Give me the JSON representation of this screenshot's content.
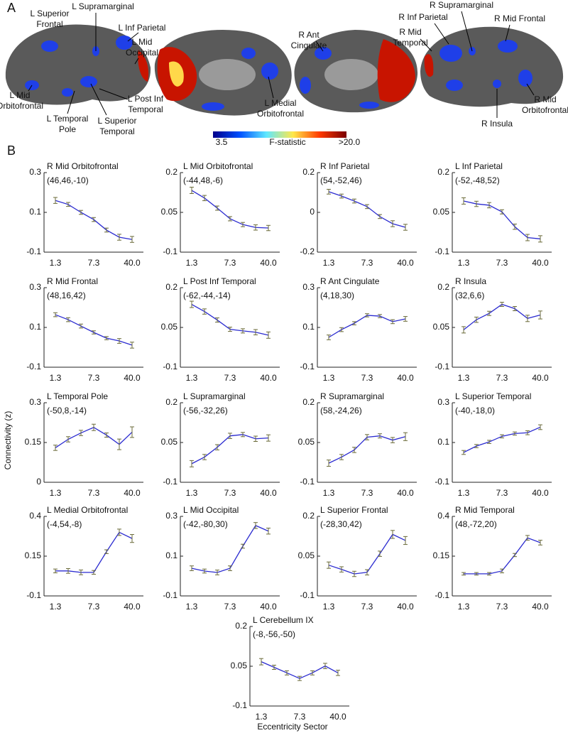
{
  "panel_labels": [
    "A",
    "B"
  ],
  "y_label": "Connectivity (z)",
  "x_label": "Eccentricity Sector",
  "colorbar": {
    "min_label": "3.5",
    "title": "F-statistic",
    "max_label": ">20.0"
  },
  "brain_labels": [
    [
      "L Superior",
      "Frontal"
    ],
    [
      "L Supramarginal"
    ],
    [
      "L Inf Parietal"
    ],
    [
      "L Mid",
      "Occipital"
    ],
    [
      "L Mid",
      "Orbitofrontal"
    ],
    [
      "L Temporal",
      "Pole"
    ],
    [
      "L Superior",
      "Temporal"
    ],
    [
      "L Post Inf",
      "Temporal"
    ],
    [
      "R Ant",
      "Cingulate"
    ],
    [
      "L Medial",
      "Orbitofrontal"
    ],
    [
      "R Supramarginal"
    ],
    [
      "R Inf Parietal"
    ],
    [
      "R Mid Frontal"
    ],
    [
      "R Mid",
      "Temporal"
    ],
    [
      "R Mid",
      "Orbitofrontal"
    ],
    [
      "R Insula"
    ]
  ],
  "chart_data": [
    {
      "type": "line",
      "title": "R Mid Orbitofrontal",
      "subtitle": "(46,46,-10)",
      "categories": [
        "1.3",
        null,
        null,
        "7.3",
        null,
        null,
        "40.0"
      ],
      "values": [
        0.16,
        0.14,
        0.1,
        0.064,
        0.011,
        -0.025,
        -0.036
      ],
      "errors": [
        0.015,
        0.01,
        0.01,
        0.01,
        0.01,
        0.015,
        0.015
      ],
      "ylim": [
        -0.1,
        0.3
      ],
      "yticks": [
        -0.1,
        0.1,
        0.3
      ],
      "color": "#2b2bd0",
      "error_color": "#6b6b3a"
    },
    {
      "type": "line",
      "title": "L Mid Orbitofrontal",
      "subtitle": "(-44,48,-6)",
      "categories": [
        "1.3",
        null,
        null,
        "7.3",
        null,
        null,
        "40.0"
      ],
      "values": [
        0.133,
        0.104,
        0.066,
        0.026,
        0.004,
        -0.007,
        -0.009
      ],
      "errors": [
        0.012,
        0.01,
        0.008,
        0.008,
        0.008,
        0.01,
        0.01
      ],
      "ylim": [
        -0.1,
        0.2
      ],
      "yticks": [
        -0.1,
        0.05,
        0.2
      ],
      "color": "#2b2bd0",
      "error_color": "#6b6b3a"
    },
    {
      "type": "line",
      "title": "R Inf Parietal",
      "subtitle": "(54,-52,46)",
      "categories": [
        "1.3",
        null,
        null,
        "7.3",
        null,
        null,
        "40.0"
      ],
      "values": [
        0.104,
        0.082,
        0.057,
        0.029,
        -0.021,
        -0.057,
        -0.075
      ],
      "errors": [
        0.012,
        0.01,
        0.01,
        0.01,
        0.01,
        0.015,
        0.015
      ],
      "ylim": [
        -0.2,
        0.2
      ],
      "yticks": [
        -0.2,
        0,
        0.2
      ],
      "color": "#2b2bd0",
      "error_color": "#6b6b3a"
    },
    {
      "type": "line",
      "title": "L Inf Parietal",
      "subtitle": "(-52,-48,52)",
      "categories": [
        "1.3",
        null,
        null,
        "7.3",
        null,
        null,
        "40.0"
      ],
      "values": [
        0.093,
        0.082,
        0.077,
        0.052,
        -0.004,
        -0.045,
        -0.05
      ],
      "errors": [
        0.012,
        0.01,
        0.01,
        0.008,
        0.01,
        0.012,
        0.012
      ],
      "ylim": [
        -0.1,
        0.2
      ],
      "yticks": [
        -0.1,
        0.05,
        0.2
      ],
      "color": "#2b2bd0",
      "error_color": "#6b6b3a"
    },
    {
      "type": "line",
      "title": "R Mid Frontal",
      "subtitle": "(48,16,42)",
      "categories": [
        "1.3",
        null,
        null,
        "7.3",
        null,
        null,
        "40.0"
      ],
      "values": [
        0.164,
        0.139,
        0.107,
        0.075,
        0.046,
        0.032,
        0.011
      ],
      "errors": [
        0.01,
        0.01,
        0.01,
        0.008,
        0.008,
        0.012,
        0.015
      ],
      "ylim": [
        -0.1,
        0.3
      ],
      "yticks": [
        -0.1,
        0.1,
        0.3
      ],
      "color": "#2b2bd0",
      "error_color": "#6b6b3a"
    },
    {
      "type": "line",
      "title": "L Post Inf Temporal",
      "subtitle": "(-62,-44,-14)",
      "categories": [
        "1.3",
        null,
        null,
        "7.3",
        null,
        null,
        "40.0"
      ],
      "values": [
        0.137,
        0.11,
        0.078,
        0.043,
        0.037,
        0.032,
        0.021
      ],
      "errors": [
        0.012,
        0.01,
        0.008,
        0.008,
        0.008,
        0.01,
        0.012
      ],
      "ylim": [
        -0.1,
        0.2
      ],
      "yticks": [
        -0.1,
        0.05,
        0.2
      ],
      "color": "#2b2bd0",
      "error_color": "#6b6b3a"
    },
    {
      "type": "line",
      "title": "R Ant Cingulate",
      "subtitle": "(4,18,30)",
      "categories": [
        "1.3",
        null,
        null,
        "7.3",
        null,
        null,
        "40.0"
      ],
      "values": [
        0.05,
        0.089,
        0.121,
        0.161,
        0.157,
        0.129,
        0.143
      ],
      "errors": [
        0.012,
        0.01,
        0.008,
        0.008,
        0.008,
        0.01,
        0.012
      ],
      "ylim": [
        -0.1,
        0.3
      ],
      "yticks": [
        -0.1,
        0.1,
        0.3
      ],
      "color": "#2b2bd0",
      "error_color": "#6b6b3a"
    },
    {
      "type": "line",
      "title": "R Insula",
      "subtitle": "(32,6,6)",
      "categories": [
        "1.3",
        null,
        null,
        "7.3",
        null,
        null,
        "40.0"
      ],
      "values": [
        0.041,
        0.079,
        0.103,
        0.137,
        0.121,
        0.084,
        0.097
      ],
      "errors": [
        0.012,
        0.01,
        0.008,
        0.008,
        0.008,
        0.012,
        0.015
      ],
      "ylim": [
        -0.1,
        0.2
      ],
      "yticks": [
        -0.1,
        0.05,
        0.2
      ],
      "color": "#2b2bd0",
      "error_color": "#6b6b3a"
    },
    {
      "type": "line",
      "title": "L Temporal Pole",
      "subtitle": "(-50,8,-14)",
      "categories": [
        "1.3",
        null,
        null,
        "7.3",
        null,
        null,
        "40.0"
      ],
      "values": [
        0.13,
        0.162,
        0.186,
        0.207,
        0.178,
        0.143,
        0.189
      ],
      "errors": [
        0.01,
        0.01,
        0.01,
        0.012,
        0.008,
        0.02,
        0.02
      ],
      "ylim": [
        0,
        0.3
      ],
      "yticks": [
        0,
        0.15,
        0.3
      ],
      "color": "#2b2bd0",
      "error_color": "#6b6b3a"
    },
    {
      "type": "line",
      "title": "L Supramarginal",
      "subtitle": "(-56,-32,26)",
      "categories": [
        "1.3",
        null,
        null,
        "7.3",
        null,
        null,
        "40.0"
      ],
      "values": [
        -0.03,
        -0.005,
        0.032,
        0.075,
        0.08,
        0.064,
        0.067
      ],
      "errors": [
        0.012,
        0.01,
        0.01,
        0.01,
        0.008,
        0.01,
        0.012
      ],
      "ylim": [
        -0.1,
        0.2
      ],
      "yticks": [
        -0.1,
        0.05,
        0.2
      ],
      "color": "#2b2bd0",
      "error_color": "#6b6b3a"
    },
    {
      "type": "line",
      "title": "R Supramarginal",
      "subtitle": "(58,-24,26)",
      "categories": [
        "1.3",
        null,
        null,
        "7.3",
        null,
        null,
        "40.0"
      ],
      "values": [
        -0.028,
        -0.005,
        0.022,
        0.07,
        0.075,
        0.059,
        0.072
      ],
      "errors": [
        0.012,
        0.01,
        0.01,
        0.01,
        0.008,
        0.01,
        0.015
      ],
      "ylim": [
        -0.1,
        0.2
      ],
      "yticks": [
        -0.1,
        0.05,
        0.2
      ],
      "color": "#2b2bd0",
      "error_color": "#6b6b3a"
    },
    {
      "type": "line",
      "title": "L Superior Temporal",
      "subtitle": "(-40,-18,0)",
      "categories": [
        "1.3",
        null,
        null,
        "7.3",
        null,
        null,
        "40.0"
      ],
      "values": [
        0.05,
        0.082,
        0.103,
        0.131,
        0.145,
        0.149,
        0.177
      ],
      "errors": [
        0.01,
        0.008,
        0.008,
        0.008,
        0.008,
        0.01,
        0.012
      ],
      "ylim": [
        -0.1,
        0.3
      ],
      "yticks": [
        -0.1,
        0.1,
        0.3
      ],
      "color": "#2b2bd0",
      "error_color": "#6b6b3a"
    },
    {
      "type": "line",
      "title": "L Medial Orbitofrontal",
      "subtitle": "(-4,54,-8)",
      "categories": [
        "1.3",
        null,
        null,
        "7.3",
        null,
        null,
        "40.0"
      ],
      "values": [
        0.057,
        0.057,
        0.048,
        0.048,
        0.178,
        0.3,
        0.261
      ],
      "errors": [
        0.012,
        0.015,
        0.015,
        0.012,
        0.012,
        0.02,
        0.025
      ],
      "ylim": [
        -0.1,
        0.4
      ],
      "yticks": [
        -0.1,
        0.15,
        0.4
      ],
      "color": "#2b2bd0",
      "error_color": "#6b6b3a"
    },
    {
      "type": "line",
      "title": "L Mid Occipital",
      "subtitle": "(-42,-80,30)",
      "categories": [
        "1.3",
        null,
        null,
        "7.3",
        null,
        null,
        "40.0"
      ],
      "values": [
        0.039,
        0.025,
        0.018,
        0.039,
        0.15,
        0.254,
        0.226
      ],
      "errors": [
        0.012,
        0.01,
        0.012,
        0.012,
        0.01,
        0.015,
        0.015
      ],
      "ylim": [
        -0.1,
        0.3
      ],
      "yticks": [
        -0.1,
        0.1,
        0.3
      ],
      "color": "#2b2bd0",
      "error_color": "#6b6b3a"
    },
    {
      "type": "line",
      "title": "L Superior Frontal",
      "subtitle": "(-28,30,42)",
      "categories": [
        "1.3",
        null,
        null,
        "7.3",
        null,
        null,
        "40.0"
      ],
      "values": [
        0.016,
        0,
        -0.017,
        -0.011,
        0.059,
        0.132,
        0.109
      ],
      "errors": [
        0.012,
        0.01,
        0.01,
        0.01,
        0.01,
        0.015,
        0.015
      ],
      "ylim": [
        -0.1,
        0.2
      ],
      "yticks": [
        -0.1,
        0.05,
        0.2
      ],
      "color": "#2b2bd0",
      "error_color": "#6b6b3a"
    },
    {
      "type": "line",
      "title": "R Mid Temporal",
      "subtitle": "(48,-72,20)",
      "categories": [
        "1.3",
        null,
        null,
        "7.3",
        null,
        null,
        "40.0"
      ],
      "values": [
        0.039,
        0.039,
        0.039,
        0.057,
        0.157,
        0.265,
        0.235
      ],
      "errors": [
        0.008,
        0.008,
        0.008,
        0.012,
        0.01,
        0.015,
        0.015
      ],
      "ylim": [
        -0.1,
        0.4
      ],
      "yticks": [
        -0.1,
        0.15,
        0.4
      ],
      "color": "#2b2bd0",
      "error_color": "#6b6b3a"
    },
    {
      "type": "line",
      "title": "L Cerebellum IX",
      "subtitle": "(-8,-56,-50)",
      "categories": [
        "1.3",
        null,
        null,
        "7.3",
        null,
        null,
        "40.0"
      ],
      "values": [
        0.067,
        0.046,
        0.025,
        0.004,
        0.025,
        0.051,
        0.025
      ],
      "errors": [
        0.012,
        0.008,
        0.008,
        0.008,
        0.008,
        0.01,
        0.01
      ],
      "ylim": [
        -0.1,
        0.2
      ],
      "yticks": [
        -0.1,
        0.05,
        0.2
      ],
      "color": "#2b2bd0",
      "error_color": "#6b6b3a"
    }
  ]
}
